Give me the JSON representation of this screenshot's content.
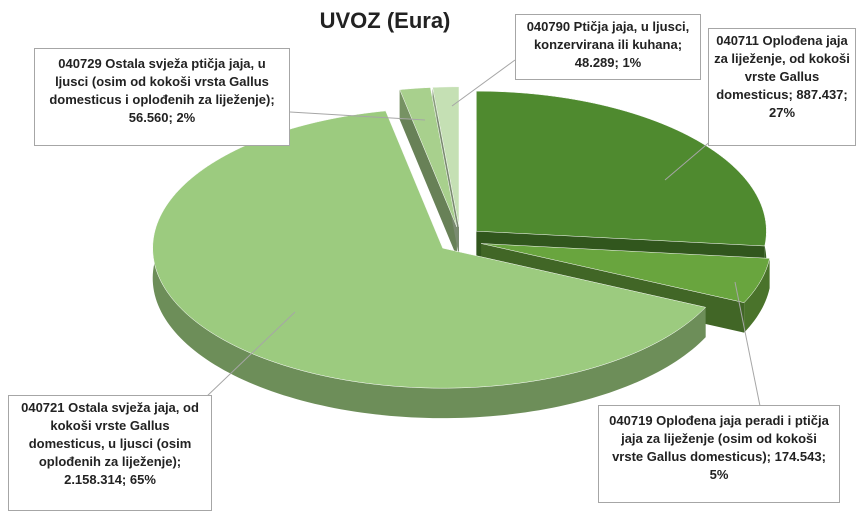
{
  "chart_data": {
    "type": "pie3d",
    "title": "UVOZ (Eura)",
    "categories": [
      "040711 Oplođena jaja za liježenje, od kokoši vrste Gallus domesticus",
      "040719 Oplođena jaja peradi i ptičja jaja za liježenje (osim od kokoši vrste Gallus domesticus)",
      "040721 Ostala svježa jaja, od kokoši vrste Gallus domesticus, u ljusci (osim oplođenih za liježenje)",
      "040729 Ostala svježa ptičja jaja, u ljusci (osim od kokoši vrsta Gallus domesticus i oplođenih za liježenje)",
      "040790 Ptičja jaja, u ljusci, konzervirana ili kuhana"
    ],
    "values": [
      887437,
      174543,
      2158314,
      56560,
      48289
    ],
    "percents": [
      27,
      5,
      65,
      2,
      1
    ],
    "labels": [
      "040711 Oplođena jaja za liježenje, od kokoši vrste Gallus domesticus; 887.437; 27%",
      "040719 Oplođena jaja peradi i ptičja jaja za liježenje (osim od kokoši vrste Gallus domesticus); 174.543; 5%",
      "040721 Ostala svježa jaja, od kokoši vrste Gallus domesticus, u ljusci (osim oplođenih za liježenje); 2.158.314; 65%",
      "040729 Ostala svježa ptičja jaja, u ljusci (osim od kokoši vrsta Gallus domesticus i oplođenih za liježenje); 56.560; 2%",
      "040790 Ptičja jaja, u ljusci, konzervirana ili kuhana; 48.289; 1%"
    ],
    "colors": [
      "#4f8a2f",
      "#69a53e",
      "#9ccb7f",
      "#a8d08d",
      "#c5e0b4"
    ]
  }
}
